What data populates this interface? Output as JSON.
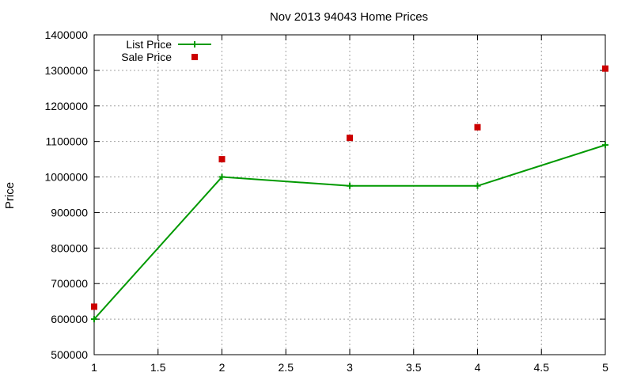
{
  "chart_data": {
    "type": "line",
    "title": "Nov 2013 94043 Home Prices",
    "xlabel": "",
    "ylabel": "Price",
    "xlim": [
      1,
      5
    ],
    "ylim": [
      500000,
      1400000
    ],
    "x_ticks": [
      "1",
      "1.5",
      "2",
      "2.5",
      "3",
      "3.5",
      "4",
      "4.5",
      "5"
    ],
    "y_ticks": [
      "500000",
      "600000",
      "700000",
      "800000",
      "900000",
      "1000000",
      "1100000",
      "1200000",
      "1300000",
      "1400000"
    ],
    "grid": true,
    "legend_position": "top-left",
    "series": [
      {
        "name": "List Price",
        "style": "lines+points",
        "color": "#009900",
        "x": [
          1,
          2,
          3,
          4,
          5
        ],
        "y": [
          600000,
          1000000,
          975000,
          975000,
          1090000
        ]
      },
      {
        "name": "Sale Price",
        "style": "points",
        "color": "#cc0000",
        "x": [
          1,
          2,
          3,
          4,
          5
        ],
        "y": [
          635000,
          1050000,
          1110000,
          1140000,
          1305000
        ]
      }
    ]
  }
}
